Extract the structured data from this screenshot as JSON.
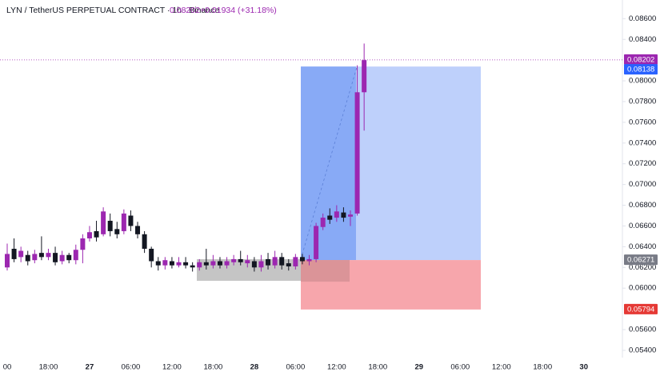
{
  "chart_data": {
    "type": "candlestick",
    "title": "LYN / TetherUS PERPETUAL CONTRACT · 1h · Binance",
    "last_price": "0.08202",
    "change": "+0.01934 (+31.18%)",
    "up_color": "#9c27b0",
    "down_color": "#131722",
    "categories": [
      "00",
      null,
      null,
      null,
      null,
      null,
      "18:00",
      null,
      null,
      null,
      null,
      null,
      "27",
      null,
      null,
      null,
      null,
      null,
      "06:00",
      null,
      null,
      null,
      null,
      null,
      "12:00",
      null,
      null,
      null,
      null,
      null,
      "18:00",
      null,
      null,
      null,
      null,
      null,
      "28",
      null,
      null,
      null,
      null,
      null,
      "06:00",
      null,
      null,
      null,
      null,
      null,
      "12:00",
      null,
      null,
      null,
      null,
      null,
      "18:00",
      null,
      null,
      null,
      null,
      null,
      "29",
      null,
      null,
      null,
      null,
      null,
      "06:00",
      null,
      null,
      null,
      null,
      null,
      "12:00",
      null,
      null,
      null,
      null,
      null,
      "18:00",
      null,
      null,
      null,
      null,
      null,
      "30",
      null,
      null,
      null,
      null
    ],
    "open": [
      0.062,
      0.0638,
      0.063,
      0.0632,
      0.0627,
      0.0634,
      0.063,
      0.0634,
      0.0626,
      0.0632,
      0.0627,
      0.0637,
      0.0648,
      0.0655,
      0.0652,
      0.0665,
      0.0657,
      0.0655,
      0.067,
      0.066,
      0.0652,
      0.0638,
      0.0626,
      0.0622,
      0.0626,
      0.0622,
      0.0625,
      0.0622,
      0.062,
      0.0625,
      0.0622,
      0.0626,
      0.0622,
      0.0625,
      0.0628,
      0.0624,
      0.0626,
      0.062,
      0.0628,
      0.0622,
      0.063,
      0.0624,
      0.0621,
      0.063,
      0.0626,
      0.0628,
      0.0659,
      0.067,
      0.0668,
      0.0673,
      0.0669,
      0.0672,
      0.0789,
      null,
      null,
      null,
      null,
      null,
      null,
      null,
      null,
      null,
      null,
      null,
      null,
      null,
      null,
      null,
      null,
      null,
      null,
      null,
      null,
      null,
      null,
      null,
      null,
      null,
      null,
      null,
      null,
      null,
      null,
      null,
      null,
      null,
      null,
      null,
      null
    ],
    "high": [
      0.0643,
      0.0648,
      0.064,
      0.0636,
      0.0637,
      0.065,
      0.0638,
      0.064,
      0.0636,
      0.0634,
      0.0642,
      0.0652,
      0.066,
      0.0665,
      0.0678,
      0.0672,
      0.0664,
      0.0676,
      0.0675,
      0.0664,
      0.0655,
      0.064,
      0.063,
      0.063,
      0.063,
      0.063,
      0.063,
      0.0625,
      0.0628,
      0.0638,
      0.0632,
      0.063,
      0.063,
      0.0632,
      0.0636,
      0.0632,
      0.063,
      0.0632,
      0.0634,
      0.0636,
      0.0634,
      0.0628,
      0.0633,
      0.0633,
      0.0632,
      0.0663,
      0.0672,
      0.0677,
      0.068,
      0.0678,
      0.0675,
      0.0815,
      0.0836,
      null,
      null,
      null,
      null,
      null,
      null,
      null,
      null,
      null,
      null,
      null,
      null,
      null,
      null,
      null,
      null,
      null,
      null,
      null,
      null,
      null,
      null,
      null,
      null,
      null,
      null,
      null,
      null,
      null,
      null,
      null,
      null,
      null,
      null,
      null,
      null
    ],
    "low": [
      0.0617,
      0.0625,
      0.0625,
      0.0622,
      0.0624,
      0.0627,
      0.0627,
      0.0622,
      0.0623,
      0.0624,
      0.0623,
      0.0624,
      0.0645,
      0.0645,
      0.065,
      0.065,
      0.0648,
      0.0652,
      0.0655,
      0.0648,
      0.0634,
      0.062,
      0.0617,
      0.0618,
      0.0619,
      0.062,
      0.0619,
      0.0616,
      0.0617,
      0.0618,
      0.0619,
      0.0619,
      0.0619,
      0.0622,
      0.0622,
      0.062,
      0.0616,
      0.0616,
      0.0618,
      0.0619,
      0.0618,
      0.0617,
      0.0618,
      0.0623,
      0.0622,
      0.0625,
      0.0656,
      0.0662,
      0.0664,
      0.0664,
      0.066,
      0.067,
      0.0752,
      null,
      null,
      null,
      null,
      null,
      null,
      null,
      null,
      null,
      null,
      null,
      null,
      null,
      null,
      null,
      null,
      null,
      null,
      null,
      null,
      null,
      null,
      null,
      null,
      null,
      null,
      null,
      null,
      null,
      null,
      null,
      null,
      null,
      null,
      null,
      null
    ],
    "close": [
      0.0633,
      0.0628,
      0.0636,
      0.0626,
      0.0633,
      0.063,
      0.0634,
      0.0625,
      0.0632,
      0.0627,
      0.0637,
      0.0648,
      0.0654,
      0.0649,
      0.0674,
      0.0655,
      0.0652,
      0.0672,
      0.066,
      0.0652,
      0.0638,
      0.0626,
      0.0622,
      0.0627,
      0.0622,
      0.0625,
      0.0622,
      0.062,
      0.0625,
      0.0622,
      0.0626,
      0.0622,
      0.0626,
      0.0628,
      0.0625,
      0.0627,
      0.062,
      0.0626,
      0.0622,
      0.063,
      0.0622,
      0.0621,
      0.063,
      0.0626,
      0.0628,
      0.066,
      0.0668,
      0.0666,
      0.0674,
      0.0668,
      0.0671,
      0.0789,
      0.082,
      null,
      null,
      null,
      null,
      null,
      null,
      null,
      null,
      null,
      null,
      null,
      null,
      null,
      null,
      null,
      null,
      null,
      null,
      null,
      null,
      null,
      null,
      null,
      null,
      null,
      null,
      null,
      null,
      null,
      null,
      null,
      null,
      null,
      null,
      null,
      null
    ],
    "ylim": [
      0.0533,
      0.0878
    ],
    "yticks": [
      {
        "value": 0.054,
        "label": "0.05400"
      },
      {
        "value": 0.056,
        "label": "0.05600"
      },
      {
        "value": 0.06,
        "label": "0.06000"
      },
      {
        "value": 0.062,
        "label": "0.06200"
      },
      {
        "value": 0.064,
        "label": "0.06400"
      },
      {
        "value": 0.066,
        "label": "0.06600"
      },
      {
        "value": 0.068,
        "label": "0.06800"
      },
      {
        "value": 0.07,
        "label": "0.07000"
      },
      {
        "value": 0.072,
        "label": "0.07200"
      },
      {
        "value": 0.074,
        "label": "0.07400"
      },
      {
        "value": 0.076,
        "label": "0.07600"
      },
      {
        "value": 0.078,
        "label": "0.07800"
      },
      {
        "value": 0.08,
        "label": "0.08000"
      },
      {
        "value": 0.084,
        "label": "0.08400"
      },
      {
        "value": 0.086,
        "label": "0.08600"
      }
    ],
    "position": {
      "target": {
        "value": 0.08138,
        "label": "0.08138"
      },
      "entry": {
        "value": 0.06271,
        "label": "0.06271"
      },
      "stop": {
        "value": 0.05794,
        "label": "0.05794"
      }
    },
    "price_line": {
      "value": 0.08202
    }
  }
}
